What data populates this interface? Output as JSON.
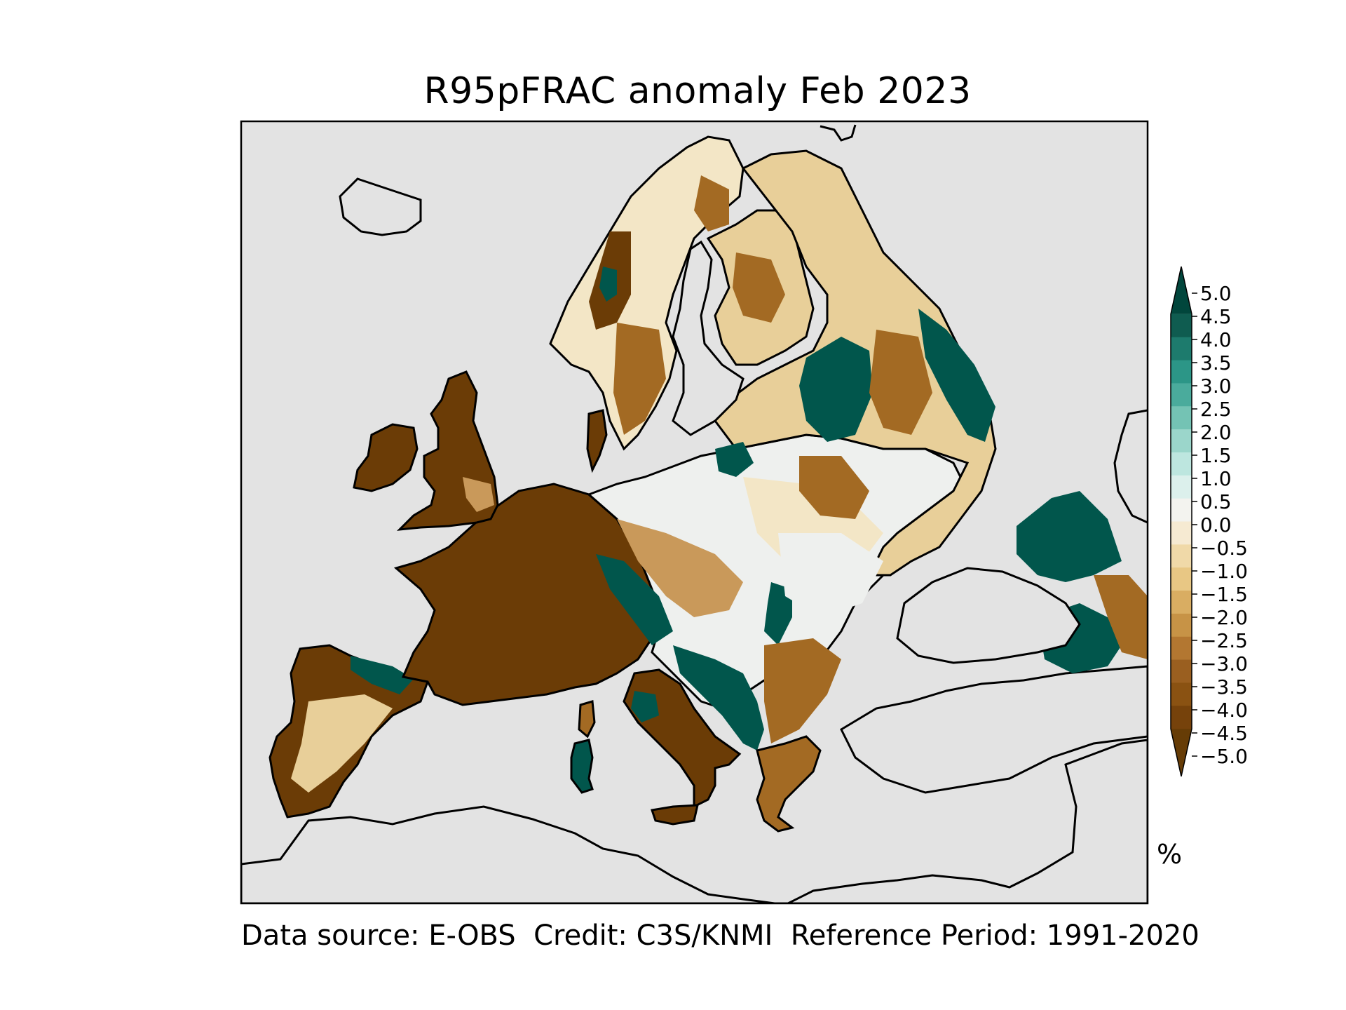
{
  "title": "R95pFRAC anomaly Feb 2023",
  "footer": {
    "source": "Data source: E-OBS  Credit: C3S/KNMI  Reference Period: 1991-2020"
  },
  "colorbar": {
    "unit": "%",
    "ticks": [
      "5.0",
      "4.5",
      "4.0",
      "3.5",
      "3.0",
      "2.5",
      "2.0",
      "1.5",
      "1.0",
      "0.5",
      "0.0",
      "−0.5",
      "−1.0",
      "−1.5",
      "−2.0",
      "−2.5",
      "−3.0",
      "−3.5",
      "−4.0",
      "−4.5",
      "−5.0"
    ],
    "colors": [
      "#0f5c50",
      "#1d7b6d",
      "#2c9687",
      "#4aab9c",
      "#74c3b4",
      "#9bd6cb",
      "#bde6df",
      "#dcf0ec",
      "#f3f3ef",
      "#f6ead2",
      "#f0d9a8",
      "#e8c784",
      "#d9ad62",
      "#c79346",
      "#b37731",
      "#9a5f20",
      "#8a5212",
      "#76420b"
    ],
    "end_colors": {
      "over": "#01463c",
      "under": "#663c06"
    }
  },
  "map": {
    "ocean_color": "#e3e3e3",
    "coast_color": "#000000",
    "anomaly_colors": {
      "strong_dry": "#6b3c06",
      "dry": "#a36a23",
      "mid_dry": "#c9995a",
      "light_dry": "#e8cf99",
      "pale": "#f3e6c6",
      "neutral": "#eef0ee",
      "wet": "#01564c",
      "mid_wet": "#2c8f80"
    }
  }
}
